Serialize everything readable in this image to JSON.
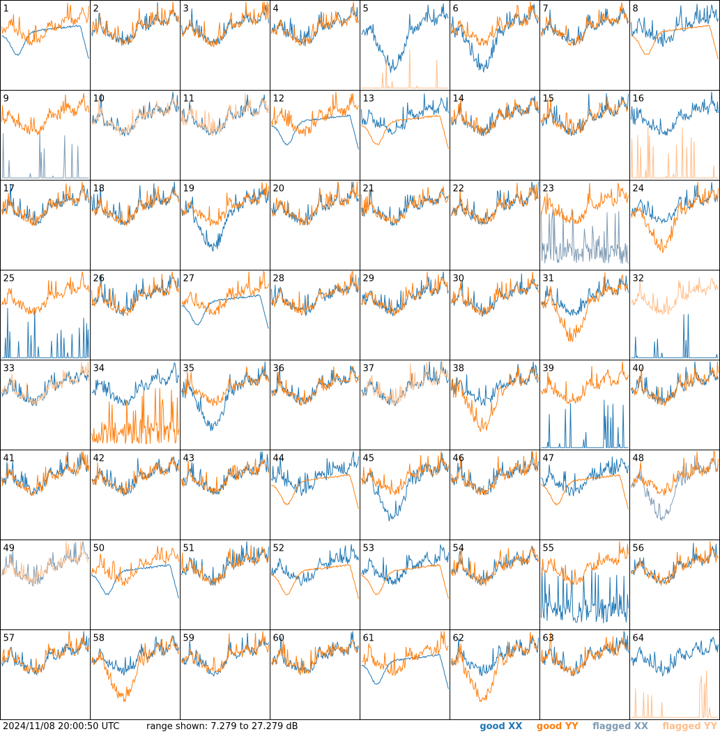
{
  "footer": {
    "timestamp": "2024/11/08 20:00:50 UTC",
    "range_text": "range shown: 7.279 to 27.279 dB"
  },
  "legend": {
    "good_xx": "good XX",
    "good_yy": "good YY",
    "flagged_xx": "flagged XX",
    "flagged_yy": "flagged YY"
  },
  "colors": {
    "good_xx": "#1f77b4",
    "good_yy": "#ff7f0e",
    "flagged_xx": "#7f9bb4",
    "flagged_yy": "#ffbe8a",
    "border": "#000000"
  },
  "chart_data": {
    "type": "line",
    "layout": "grid 8x8 of small-multiple spectra",
    "ylim_db": [
      7.279,
      27.279
    ],
    "series_names": [
      "good XX",
      "good YY",
      "flagged XX",
      "flagged YY"
    ],
    "panels": [
      {
        "id": "1",
        "xx": "flat",
        "yy": "norm",
        "xx_flag": false,
        "yy_flag": false
      },
      {
        "id": "2",
        "xx": "norm",
        "yy": "norm",
        "xx_flag": false,
        "yy_flag": false
      },
      {
        "id": "3",
        "xx": "norm",
        "yy": "norm",
        "xx_flag": false,
        "yy_flag": false
      },
      {
        "id": "4",
        "xx": "norm",
        "yy": "norm",
        "xx_flag": false,
        "yy_flag": false
      },
      {
        "id": "5",
        "xx": "dip",
        "yy": "spiky",
        "xx_flag": false,
        "yy_flag": true
      },
      {
        "id": "6",
        "xx": "dip",
        "yy": "norm",
        "xx_flag": false,
        "yy_flag": false
      },
      {
        "id": "7",
        "xx": "norm",
        "yy": "norm",
        "xx_flag": false,
        "yy_flag": false
      },
      {
        "id": "8",
        "xx": "norm",
        "yy": "flat",
        "xx_flag": false,
        "yy_flag": false
      },
      {
        "id": "9",
        "xx": "spiky",
        "yy": "norm",
        "xx_flag": true,
        "yy_flag": false
      },
      {
        "id": "10",
        "xx": "norm",
        "yy": "norm",
        "xx_flag": false,
        "yy_flag": true
      },
      {
        "id": "11",
        "xx": "norm",
        "yy": "norm",
        "xx_flag": false,
        "yy_flag": true
      },
      {
        "id": "12",
        "xx": "flat",
        "yy": "norm",
        "xx_flag": false,
        "yy_flag": false
      },
      {
        "id": "13",
        "xx": "norm",
        "yy": "flat",
        "xx_flag": false,
        "yy_flag": false
      },
      {
        "id": "14",
        "xx": "norm",
        "yy": "norm",
        "xx_flag": false,
        "yy_flag": false
      },
      {
        "id": "15",
        "xx": "norm",
        "yy": "norm",
        "xx_flag": false,
        "yy_flag": false
      },
      {
        "id": "16",
        "xx": "norm",
        "yy": "spiky",
        "xx_flag": false,
        "yy_flag": true
      },
      {
        "id": "17",
        "xx": "norm",
        "yy": "norm",
        "xx_flag": false,
        "yy_flag": false
      },
      {
        "id": "18",
        "xx": "norm",
        "yy": "norm",
        "xx_flag": false,
        "yy_flag": false
      },
      {
        "id": "19",
        "xx": "dip",
        "yy": "norm",
        "xx_flag": false,
        "yy_flag": false
      },
      {
        "id": "20",
        "xx": "norm",
        "yy": "norm",
        "xx_flag": false,
        "yy_flag": false
      },
      {
        "id": "21",
        "xx": "norm",
        "yy": "norm",
        "xx_flag": false,
        "yy_flag": false
      },
      {
        "id": "22",
        "xx": "norm",
        "yy": "norm",
        "xx_flag": false,
        "yy_flag": false
      },
      {
        "id": "23",
        "xx": "low",
        "yy": "norm",
        "xx_flag": true,
        "yy_flag": false
      },
      {
        "id": "24",
        "xx": "norm",
        "yy": "dip",
        "xx_flag": false,
        "yy_flag": false
      },
      {
        "id": "25",
        "xx": "spiky",
        "yy": "norm",
        "xx_flag": false,
        "yy_flag": false
      },
      {
        "id": "26",
        "xx": "norm",
        "yy": "norm",
        "xx_flag": false,
        "yy_flag": false
      },
      {
        "id": "27",
        "xx": "flat",
        "yy": "norm",
        "xx_flag": false,
        "yy_flag": false
      },
      {
        "id": "28",
        "xx": "norm",
        "yy": "norm",
        "xx_flag": false,
        "yy_flag": false
      },
      {
        "id": "29",
        "xx": "norm",
        "yy": "norm",
        "xx_flag": false,
        "yy_flag": false
      },
      {
        "id": "30",
        "xx": "norm",
        "yy": "norm",
        "xx_flag": false,
        "yy_flag": false
      },
      {
        "id": "31",
        "xx": "norm",
        "yy": "dip",
        "xx_flag": false,
        "yy_flag": false
      },
      {
        "id": "32",
        "xx": "spiky",
        "yy": "norm",
        "xx_flag": false,
        "yy_flag": true
      },
      {
        "id": "33",
        "xx": "norm",
        "yy": "norm",
        "xx_flag": false,
        "yy_flag": true
      },
      {
        "id": "34",
        "xx": "norm",
        "yy": "low",
        "xx_flag": false,
        "yy_flag": false
      },
      {
        "id": "35",
        "xx": "dip",
        "yy": "norm",
        "xx_flag": false,
        "yy_flag": false
      },
      {
        "id": "36",
        "xx": "norm",
        "yy": "norm",
        "xx_flag": false,
        "yy_flag": false
      },
      {
        "id": "37",
        "xx": "norm",
        "yy": "norm",
        "xx_flag": false,
        "yy_flag": true
      },
      {
        "id": "38",
        "xx": "norm",
        "yy": "dip",
        "xx_flag": false,
        "yy_flag": false
      },
      {
        "id": "39",
        "xx": "spiky",
        "yy": "norm",
        "xx_flag": false,
        "yy_flag": false
      },
      {
        "id": "40",
        "xx": "norm",
        "yy": "norm",
        "xx_flag": false,
        "yy_flag": false
      },
      {
        "id": "41",
        "xx": "norm",
        "yy": "norm",
        "xx_flag": false,
        "yy_flag": false
      },
      {
        "id": "42",
        "xx": "norm",
        "yy": "norm",
        "xx_flag": false,
        "yy_flag": false
      },
      {
        "id": "43",
        "xx": "norm",
        "yy": "norm",
        "xx_flag": false,
        "yy_flag": false
      },
      {
        "id": "44",
        "xx": "norm",
        "yy": "flat",
        "xx_flag": false,
        "yy_flag": false
      },
      {
        "id": "45",
        "xx": "dip",
        "yy": "norm",
        "xx_flag": false,
        "yy_flag": false
      },
      {
        "id": "46",
        "xx": "norm",
        "yy": "norm",
        "xx_flag": false,
        "yy_flag": false
      },
      {
        "id": "47",
        "xx": "norm",
        "yy": "flat",
        "xx_flag": false,
        "yy_flag": false
      },
      {
        "id": "48",
        "xx": "dip",
        "yy": "norm",
        "xx_flag": true,
        "yy_flag": false
      },
      {
        "id": "49",
        "xx": "norm",
        "yy": "norm",
        "xx_flag": true,
        "yy_flag": true
      },
      {
        "id": "50",
        "xx": "flat",
        "yy": "norm",
        "xx_flag": false,
        "yy_flag": false
      },
      {
        "id": "51",
        "xx": "norm",
        "yy": "norm",
        "xx_flag": false,
        "yy_flag": false
      },
      {
        "id": "52",
        "xx": "norm",
        "yy": "flat",
        "xx_flag": false,
        "yy_flag": false
      },
      {
        "id": "53",
        "xx": "norm",
        "yy": "flat",
        "xx_flag": false,
        "yy_flag": false
      },
      {
        "id": "54",
        "xx": "norm",
        "yy": "norm",
        "xx_flag": false,
        "yy_flag": false
      },
      {
        "id": "55",
        "xx": "low",
        "yy": "norm",
        "xx_flag": false,
        "yy_flag": false
      },
      {
        "id": "56",
        "xx": "norm",
        "yy": "norm",
        "xx_flag": false,
        "yy_flag": false
      },
      {
        "id": "57",
        "xx": "norm",
        "yy": "norm",
        "xx_flag": false,
        "yy_flag": false
      },
      {
        "id": "58",
        "xx": "norm",
        "yy": "dip",
        "xx_flag": false,
        "yy_flag": false
      },
      {
        "id": "59",
        "xx": "norm",
        "yy": "norm",
        "xx_flag": false,
        "yy_flag": false
      },
      {
        "id": "60",
        "xx": "norm",
        "yy": "norm",
        "xx_flag": false,
        "yy_flag": false
      },
      {
        "id": "61",
        "xx": "flat",
        "yy": "norm",
        "xx_flag": false,
        "yy_flag": false
      },
      {
        "id": "62",
        "xx": "norm",
        "yy": "dip",
        "xx_flag": false,
        "yy_flag": false
      },
      {
        "id": "63",
        "xx": "norm",
        "yy": "norm",
        "xx_flag": false,
        "yy_flag": false
      },
      {
        "id": "64",
        "xx": "norm",
        "yy": "spiky",
        "xx_flag": false,
        "yy_flag": true
      }
    ]
  }
}
